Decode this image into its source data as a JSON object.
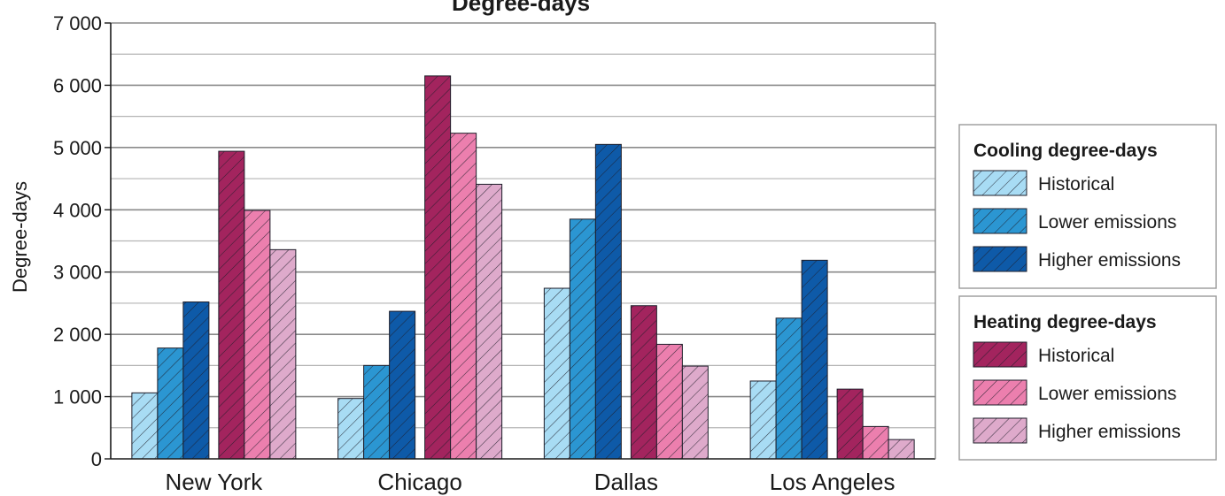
{
  "chart_data": {
    "type": "bar",
    "title": "Degree-days",
    "ylabel": "Degree-days",
    "xlabel": "",
    "ylim": [
      0,
      7000
    ],
    "yticks": [
      0,
      1000,
      2000,
      3000,
      4000,
      5000,
      6000,
      7000
    ],
    "ytick_labels": [
      "0",
      "1 000",
      "2 000",
      "3 000",
      "4 000",
      "5 000",
      "6 000",
      "7 000"
    ],
    "grid": true,
    "legend_position": "right",
    "categories": [
      "New York",
      "Chicago",
      "Dallas",
      "Los Angeles"
    ],
    "groups": [
      {
        "name": "Cooling degree-days",
        "series": [
          {
            "name": "Historical",
            "values": [
              1060,
              970,
              2740,
              1250
            ],
            "color": "#a8dcf4"
          },
          {
            "name": "Lower emissions",
            "values": [
              1780,
              1500,
              3850,
              2260
            ],
            "color": "#2b96d2"
          },
          {
            "name": "Higher emissions",
            "values": [
              2520,
              2370,
              5050,
              3190
            ],
            "color": "#0e5aa8"
          }
        ]
      },
      {
        "name": "Heating degree-days",
        "series": [
          {
            "name": "Historical",
            "values": [
              4940,
              6150,
              2460,
              1120
            ],
            "color": "#a3245e"
          },
          {
            "name": "Lower emissions",
            "values": [
              3990,
              5230,
              1840,
              520
            ],
            "color": "#ec7fae"
          },
          {
            "name": "Higher emissions",
            "values": [
              3360,
              4410,
              1490,
              310
            ],
            "color": "#deaacb"
          }
        ]
      }
    ]
  }
}
